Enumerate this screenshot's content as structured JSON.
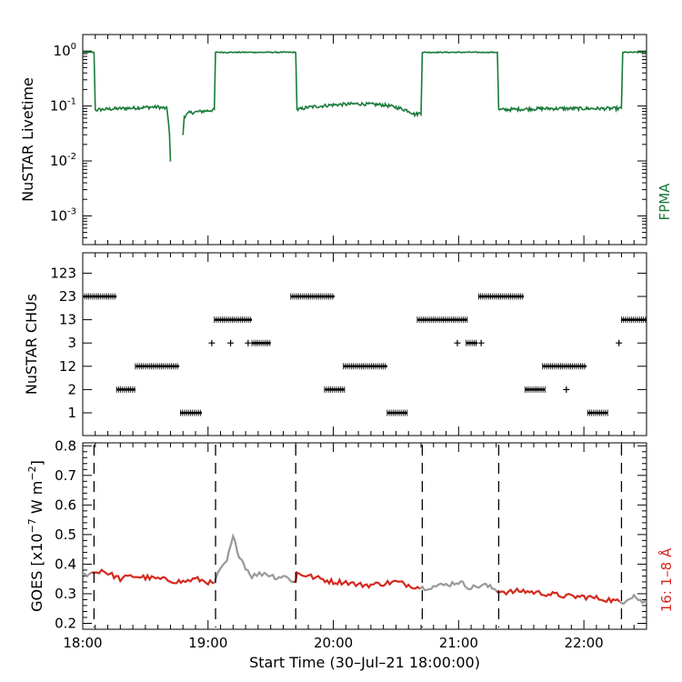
{
  "chart_data": [
    {
      "type": "line",
      "panel": "top",
      "ylabel": "NuSTAR Livetime",
      "yscale": "log",
      "ylim": [
        0.0003,
        2
      ],
      "xlim": [
        18.0,
        22.5
      ],
      "yticks": [
        {
          "value": 1,
          "base": "10",
          "exp": "0"
        },
        {
          "value": 0.1,
          "base": "10",
          "exp": "-1"
        },
        {
          "value": 0.01,
          "base": "10",
          "exp": "-2"
        },
        {
          "value": 0.001,
          "base": "10",
          "exp": "-3"
        }
      ],
      "legend": {
        "label": "FPMA",
        "color": "#1a7a3a"
      },
      "series": [
        {
          "name": "FPMA",
          "color": "#1a7a3a",
          "x": [
            18.0,
            18.09,
            18.1,
            18.11,
            18.2,
            18.3,
            18.4,
            18.5,
            18.6,
            18.67,
            18.7,
            18.705,
            18.8,
            18.81,
            18.85,
            18.95,
            19.05,
            19.06,
            19.2,
            19.4,
            19.6,
            19.7,
            19.71,
            19.8,
            20.0,
            20.2,
            20.4,
            20.5,
            20.6,
            20.65,
            20.7,
            20.71,
            20.9,
            21.1,
            21.31,
            21.32,
            21.5,
            21.7,
            21.9,
            22.1,
            22.3,
            22.31,
            22.5
          ],
          "y": [
            0.95,
            0.95,
            0.085,
            0.085,
            0.088,
            0.09,
            0.092,
            0.095,
            0.096,
            0.09,
            0.01,
            0.01,
            0.03,
            0.065,
            0.075,
            0.08,
            0.085,
            0.95,
            0.95,
            0.95,
            0.95,
            0.95,
            0.085,
            0.095,
            0.105,
            0.11,
            0.105,
            0.095,
            0.082,
            0.07,
            0.075,
            0.95,
            0.95,
            0.95,
            0.95,
            0.085,
            0.088,
            0.09,
            0.09,
            0.09,
            0.09,
            0.95,
            0.95
          ]
        }
      ]
    },
    {
      "type": "scatter",
      "panel": "middle",
      "ylabel": "NuSTAR CHUs",
      "xlim": [
        18.0,
        22.5
      ],
      "categories": [
        "1",
        "2",
        "12",
        "3",
        "13",
        "23",
        "123"
      ],
      "segments": [
        {
          "cat": "23",
          "x0": 18.0,
          "x1": 18.27
        },
        {
          "cat": "2",
          "x0": 18.27,
          "x1": 18.42
        },
        {
          "cat": "12",
          "x0": 18.42,
          "x1": 18.77
        },
        {
          "cat": "1",
          "x0": 18.78,
          "x1": 18.95
        },
        {
          "cat": "13",
          "x0": 19.05,
          "x1": 19.35
        },
        {
          "cat": "3",
          "x0": 19.35,
          "x1": 19.5
        },
        {
          "cat": "23",
          "x0": 19.66,
          "x1": 20.01
        },
        {
          "cat": "2",
          "x0": 19.93,
          "x1": 20.09
        },
        {
          "cat": "12",
          "x0": 20.08,
          "x1": 20.43
        },
        {
          "cat": "1",
          "x0": 20.43,
          "x1": 20.59
        },
        {
          "cat": "13",
          "x0": 20.67,
          "x1": 21.07
        },
        {
          "cat": "3",
          "x0": 21.06,
          "x1": 21.15
        },
        {
          "cat": "23",
          "x0": 21.16,
          "x1": 21.52
        },
        {
          "cat": "2",
          "x0": 21.53,
          "x1": 21.69
        },
        {
          "cat": "12",
          "x0": 21.67,
          "x1": 22.02
        },
        {
          "cat": "1",
          "x0": 22.03,
          "x1": 22.19
        },
        {
          "cat": "13",
          "x0": 22.3,
          "x1": 22.5
        }
      ],
      "isolated_points": [
        {
          "cat": "3",
          "x": 19.03
        },
        {
          "cat": "3",
          "x": 19.18
        },
        {
          "cat": "3",
          "x": 19.32
        },
        {
          "cat": "3",
          "x": 20.99
        },
        {
          "cat": "3",
          "x": 21.18
        },
        {
          "cat": "2",
          "x": 21.86
        },
        {
          "cat": "3",
          "x": 22.28
        }
      ]
    },
    {
      "type": "line",
      "panel": "bottom",
      "ylabel_parts": {
        "pre": "GOES [x10",
        "sup1": "−7",
        "mid": " W m",
        "sup2": "−2",
        "post": "]"
      },
      "ylim": [
        0.18,
        0.81
      ],
      "xlim": [
        18.0,
        22.5
      ],
      "yticks": [
        "0.2",
        "0.3",
        "0.4",
        "0.5",
        "0.6",
        "0.7",
        "0.8"
      ],
      "xticks": [
        "18:00",
        "19:00",
        "20:00",
        "21:00",
        "22:00"
      ],
      "xlabel": "Start Time (30–Jul–21 18:00:00)",
      "legend": {
        "label": "16: 1–8 Å",
        "color": "#d42a1f"
      },
      "vlines": [
        18.09,
        19.06,
        19.7,
        20.71,
        21.32,
        22.3
      ],
      "series": [
        {
          "name": "GOES 1-8 A",
          "color_active": "#d42a1f",
          "color_inactive": "#999999",
          "x": [
            18.0,
            18.05,
            18.09,
            18.15,
            18.2,
            18.3,
            18.4,
            18.5,
            18.6,
            18.7,
            18.8,
            18.9,
            19.0,
            19.05,
            19.06,
            19.1,
            19.15,
            19.2,
            19.25,
            19.3,
            19.35,
            19.45,
            19.55,
            19.6,
            19.7,
            19.71,
            19.8,
            19.9,
            20.0,
            20.1,
            20.2,
            20.3,
            20.4,
            20.5,
            20.6,
            20.71,
            20.8,
            20.9,
            21.0,
            21.1,
            21.2,
            21.32,
            21.4,
            21.5,
            21.6,
            21.7,
            21.8,
            21.9,
            22.0,
            22.1,
            22.2,
            22.3,
            22.35,
            22.4,
            22.45,
            22.5
          ],
          "y": [
            0.36,
            0.37,
            0.37,
            0.38,
            0.37,
            0.35,
            0.36,
            0.355,
            0.35,
            0.345,
            0.34,
            0.35,
            0.34,
            0.33,
            0.35,
            0.38,
            0.41,
            0.49,
            0.43,
            0.39,
            0.36,
            0.37,
            0.355,
            0.36,
            0.34,
            0.37,
            0.36,
            0.35,
            0.34,
            0.34,
            0.33,
            0.33,
            0.335,
            0.34,
            0.33,
            0.32,
            0.325,
            0.33,
            0.34,
            0.32,
            0.33,
            0.31,
            0.305,
            0.31,
            0.305,
            0.3,
            0.295,
            0.29,
            0.29,
            0.285,
            0.28,
            0.27,
            0.285,
            0.295,
            0.275,
            0.27
          ],
          "active": [
            [
              18.09,
              19.06
            ],
            [
              19.7,
              20.71
            ],
            [
              21.32,
              22.3
            ]
          ]
        }
      ]
    }
  ]
}
